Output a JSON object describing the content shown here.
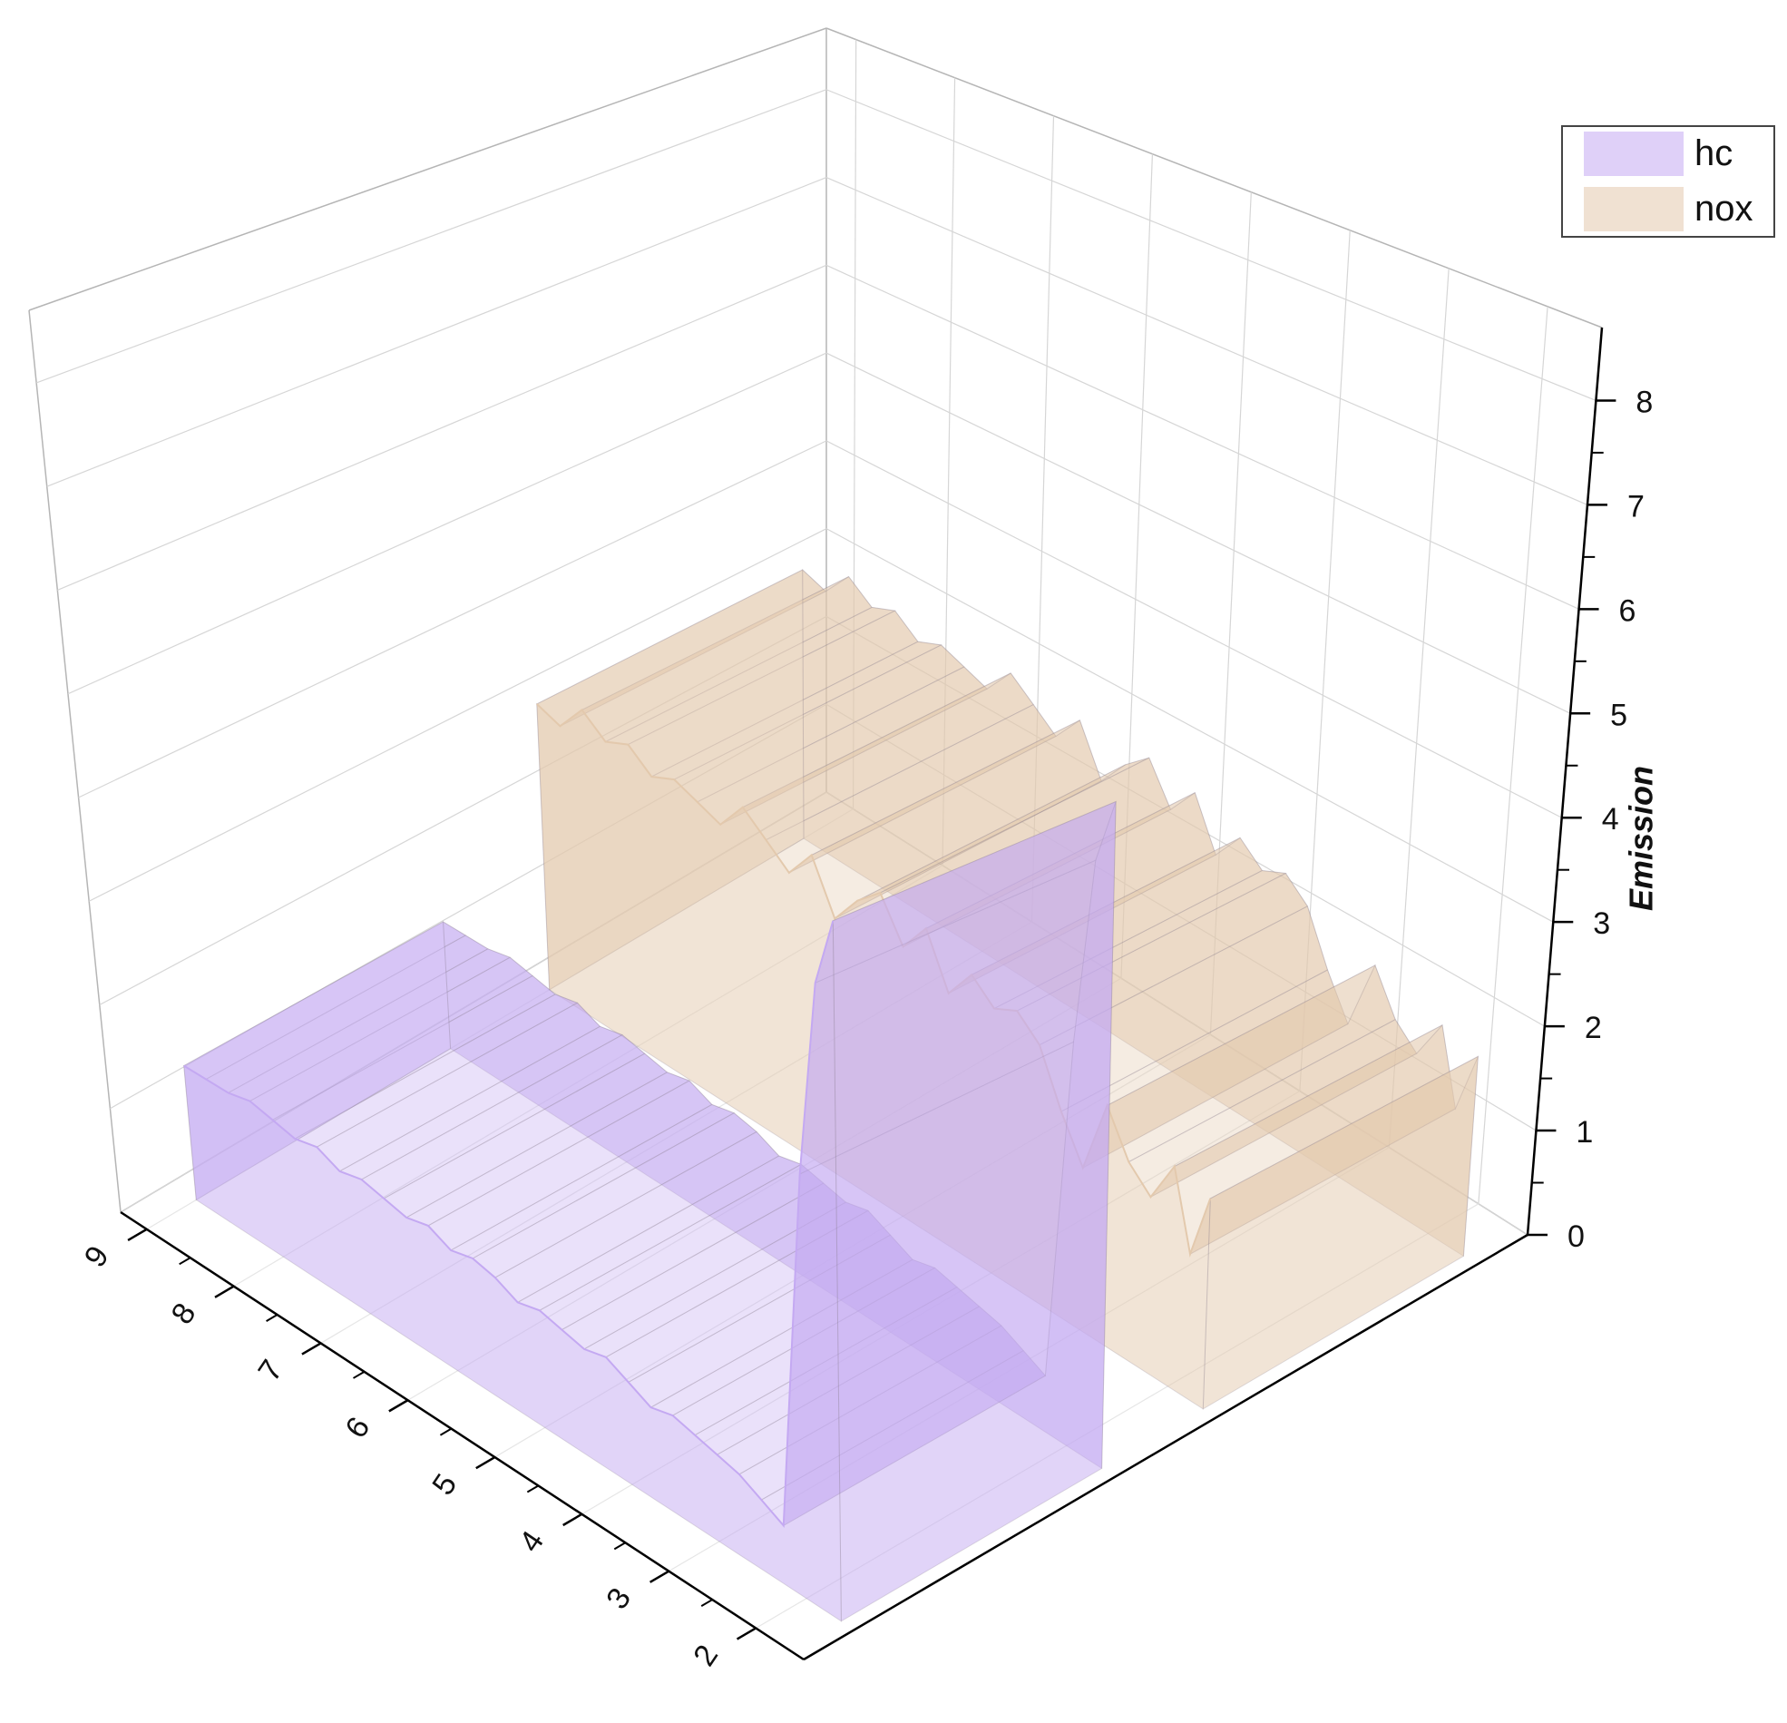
{
  "chart_data": {
    "type": "wall3d",
    "x": [
      1.6,
      1.8,
      2.0,
      2.25,
      2.5,
      2.75,
      3.0,
      3.25,
      3.5,
      3.75,
      4.0,
      4.25,
      4.5,
      4.75,
      5.0,
      5.25,
      5.5,
      5.75,
      6.0,
      6.25,
      6.5,
      6.75,
      7.0,
      7.25,
      7.5,
      7.75,
      8.0,
      8.25,
      8.5,
      8.75,
      9.0
    ],
    "series": [
      {
        "name": "hc",
        "color": "#c4a9f2",
        "values": [
          5.9,
          5.3,
          3.6,
          0.5,
          0.6,
          0.7,
          0.75,
          0.8,
          0.85,
          0.8,
          0.9,
          1.0,
          0.95,
          1.0,
          1.05,
          1.0,
          1.1,
          1.15,
          1.1,
          1.2,
          1.15,
          1.2,
          1.25,
          1.2,
          1.3,
          1.25,
          1.3,
          1.35,
          1.3,
          1.3,
          1.3
        ]
      },
      {
        "name": "nox",
        "color": "#e3c9ad",
        "values": [
          1.9,
          1.3,
          2.0,
          1.6,
          1.8,
          2.2,
          1.5,
          1.9,
          2.4,
          2.6,
          2.5,
          2.7,
          2.4,
          2.9,
          2.6,
          3.0,
          2.8,
          2.5,
          3.0,
          2.7,
          2.9,
          3.1,
          2.8,
          2.9,
          3.0,
          2.9,
          3.1,
          3.0,
          3.2,
          2.9,
          3.0
        ]
      }
    ],
    "xlim": [
      1.45,
      9.3
    ],
    "xticks": [
      2,
      3,
      4,
      5,
      6,
      7,
      8,
      9
    ],
    "zlabel": "Emission",
    "zlim": [
      0,
      8.7
    ],
    "zticks": [
      0,
      1,
      2,
      3,
      4,
      5,
      6,
      7,
      8
    ],
    "grid": true,
    "legend": "top-right"
  }
}
